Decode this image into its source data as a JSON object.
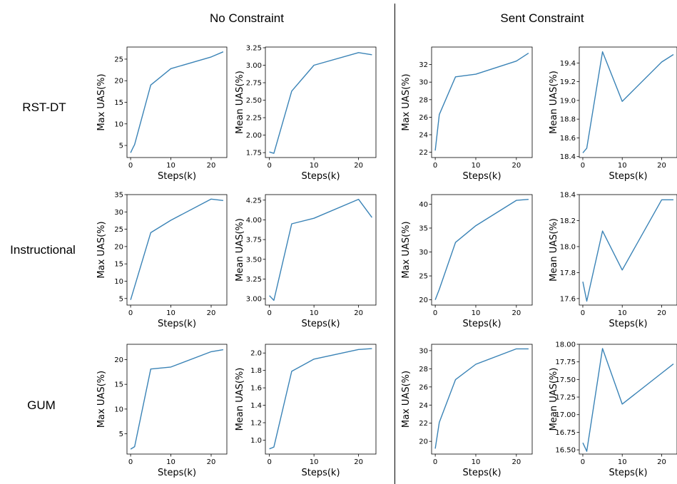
{
  "column_titles": [
    "No Constraint",
    "Sent Constraint"
  ],
  "row_labels": [
    "RST-DT",
    "Instructional",
    "GUM"
  ],
  "line_color": "#3a83b6",
  "chart_data": [
    {
      "type": "line",
      "row": 0,
      "col": 0,
      "xlabel": "Steps(k)",
      "ylabel": "Max UAS(%)",
      "x": [
        0,
        0.5,
        1,
        5,
        10,
        20,
        23
      ],
      "y": [
        3.3,
        4.3,
        5.2,
        19.0,
        22.8,
        25.5,
        26.7
      ],
      "xlim": [
        -0.9,
        23.9
      ],
      "ylim": [
        2.2,
        27.8
      ],
      "xticks": [
        0,
        10,
        20
      ],
      "yticks": [
        5,
        10,
        15,
        20,
        25
      ]
    },
    {
      "type": "line",
      "row": 0,
      "col": 1,
      "xlabel": "Steps(k)",
      "ylabel": "Mean UAS(%)",
      "x": [
        0,
        1,
        5,
        10,
        20,
        23
      ],
      "y": [
        1.76,
        1.74,
        2.63,
        3.0,
        3.18,
        3.15
      ],
      "xlim": [
        -0.9,
        23.9
      ],
      "ylim": [
        1.68,
        3.26
      ],
      "xticks": [
        0,
        10,
        20
      ],
      "yticks": [
        1.75,
        2.0,
        2.25,
        2.5,
        2.75,
        3.0,
        3.25
      ]
    },
    {
      "type": "line",
      "row": 0,
      "col": 2,
      "xlabel": "Steps(k)",
      "ylabel": "Max UAS(%)",
      "x": [
        0,
        1,
        5,
        10,
        20,
        23
      ],
      "y": [
        22.2,
        26.3,
        30.6,
        30.9,
        32.4,
        33.3
      ],
      "xlim": [
        -0.9,
        23.9
      ],
      "ylim": [
        21.4,
        34.0
      ],
      "xticks": [
        0,
        10,
        20
      ],
      "yticks": [
        22,
        24,
        26,
        28,
        30,
        32
      ]
    },
    {
      "type": "line",
      "row": 0,
      "col": 3,
      "xlabel": "Steps(k)",
      "ylabel": "Mean UAS(%)",
      "x": [
        0,
        1,
        5,
        10,
        20,
        23
      ],
      "y": [
        18.44,
        18.49,
        19.52,
        18.99,
        19.41,
        19.49
      ],
      "xlim": [
        -0.9,
        23.9
      ],
      "ylim": [
        18.39,
        19.57
      ],
      "xticks": [
        0,
        10,
        20
      ],
      "yticks": [
        18.4,
        18.6,
        18.8,
        19.0,
        19.2,
        19.4
      ]
    },
    {
      "type": "line",
      "row": 1,
      "col": 0,
      "xlabel": "Steps(k)",
      "ylabel": "Max UAS(%)",
      "x": [
        0,
        5,
        10,
        20,
        23
      ],
      "y": [
        4.6,
        24.0,
        27.6,
        33.7,
        33.3
      ],
      "xlim": [
        -0.9,
        23.9
      ],
      "ylim": [
        3.1,
        35.0
      ],
      "xticks": [
        0,
        10,
        20
      ],
      "yticks": [
        5,
        10,
        15,
        20,
        25,
        30,
        35
      ]
    },
    {
      "type": "line",
      "row": 1,
      "col": 1,
      "xlabel": "Steps(k)",
      "ylabel": "Mean UAS(%)",
      "x": [
        0,
        1,
        5,
        10,
        20,
        23
      ],
      "y": [
        3.04,
        2.98,
        3.95,
        4.02,
        4.26,
        4.03
      ],
      "xlim": [
        -0.9,
        23.9
      ],
      "ylim": [
        2.92,
        4.32
      ],
      "xticks": [
        0,
        10,
        20
      ],
      "yticks": [
        3.0,
        3.25,
        3.5,
        3.75,
        4.0,
        4.25
      ]
    },
    {
      "type": "line",
      "row": 1,
      "col": 2,
      "xlabel": "Steps(k)",
      "ylabel": "Max UAS(%)",
      "x": [
        0,
        1,
        5,
        10,
        20,
        23
      ],
      "y": [
        20.0,
        22.2,
        32.0,
        35.5,
        40.8,
        41.0
      ],
      "xlim": [
        -0.9,
        23.9
      ],
      "ylim": [
        18.9,
        42.0
      ],
      "xticks": [
        0,
        10,
        20
      ],
      "yticks": [
        20,
        25,
        30,
        35,
        40
      ]
    },
    {
      "type": "line",
      "row": 1,
      "col": 3,
      "xlabel": "Steps(k)",
      "ylabel": "Mean UAS(%)",
      "x": [
        0,
        1,
        5,
        10,
        20,
        23
      ],
      "y": [
        17.73,
        17.58,
        18.12,
        17.82,
        18.36,
        18.36
      ],
      "xlim": [
        -0.9,
        23.9
      ],
      "ylim": [
        17.55,
        18.4
      ],
      "xticks": [
        0,
        10,
        20
      ],
      "yticks": [
        17.6,
        17.8,
        18.0,
        18.2,
        18.4
      ]
    },
    {
      "type": "line",
      "row": 2,
      "col": 0,
      "xlabel": "Steps(k)",
      "ylabel": "Max UAS(%)",
      "x": [
        0,
        1,
        5,
        10,
        20,
        23
      ],
      "y": [
        1.9,
        2.4,
        18.1,
        18.5,
        21.6,
        22.0
      ],
      "xlim": [
        -0.9,
        23.9
      ],
      "ylim": [
        0.9,
        23.1
      ],
      "xticks": [
        0,
        10,
        20
      ],
      "yticks": [
        5,
        10,
        15,
        20
      ]
    },
    {
      "type": "line",
      "row": 2,
      "col": 1,
      "xlabel": "Steps(k)",
      "ylabel": "Mean UAS(%)",
      "x": [
        0,
        1,
        5,
        10,
        20,
        23
      ],
      "y": [
        0.9,
        0.92,
        1.79,
        1.93,
        2.04,
        2.05
      ],
      "xlim": [
        -0.9,
        23.9
      ],
      "ylim": [
        0.84,
        2.1
      ],
      "xticks": [
        0,
        10,
        20
      ],
      "yticks": [
        1.0,
        1.2,
        1.4,
        1.6,
        1.8,
        2.0
      ]
    },
    {
      "type": "line",
      "row": 2,
      "col": 2,
      "xlabel": "Steps(k)",
      "ylabel": "Max UAS(%)",
      "x": [
        0,
        1,
        5,
        10,
        20,
        23
      ],
      "y": [
        19.2,
        22.1,
        26.8,
        28.5,
        30.2,
        30.2
      ],
      "xlim": [
        -0.9,
        23.9
      ],
      "ylim": [
        18.6,
        30.7
      ],
      "xticks": [
        0,
        10,
        20
      ],
      "yticks": [
        20,
        22,
        24,
        26,
        28,
        30
      ]
    },
    {
      "type": "line",
      "row": 2,
      "col": 3,
      "xlabel": "Steps(k)",
      "ylabel": "Mean UAS(%)",
      "x": [
        0,
        1,
        5,
        10,
        20,
        23
      ],
      "y": [
        16.6,
        16.48,
        17.94,
        17.15,
        17.59,
        17.72
      ],
      "xlim": [
        -0.9,
        23.9
      ],
      "ylim": [
        16.44,
        18.0
      ],
      "xticks": [
        0,
        10,
        20
      ],
      "yticks": [
        16.5,
        16.75,
        17.0,
        17.25,
        17.5,
        17.75,
        18.0
      ]
    }
  ]
}
